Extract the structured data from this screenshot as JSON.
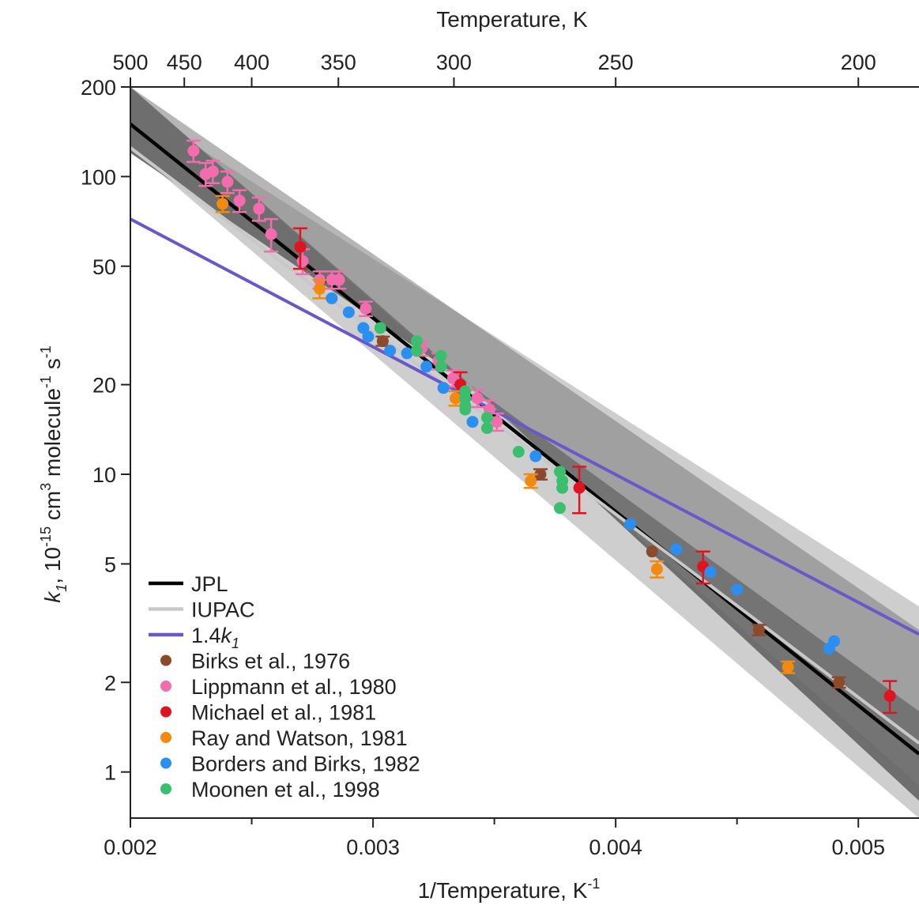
{
  "chart_data": {
    "type": "scatter",
    "title": "",
    "top_axis": {
      "label": "Temperature, K",
      "tick_values_K": [
        500,
        450,
        400,
        350,
        300,
        250,
        200
      ],
      "tick_labels": [
        "500",
        "450",
        "400",
        "350",
        "300",
        "250",
        "200"
      ]
    },
    "x_axis": {
      "label": "1/Temperature, K",
      "label_sup": "-1",
      "range": [
        0.002,
        0.00525
      ],
      "major_ticks": [
        0.002,
        0.003,
        0.004,
        0.005
      ],
      "tick_labels": [
        "0.002",
        "0.003",
        "0.004",
        "0.005"
      ],
      "minor_ticks": [
        0.0025,
        0.0035,
        0.0045
      ]
    },
    "y_axis": {
      "label_parts": [
        "k",
        "1",
        ", 10",
        "-15",
        " cm",
        "3",
        " molecule",
        "-1",
        " s",
        "-1"
      ],
      "scale": "log",
      "range": [
        0.7,
        200
      ],
      "tick_values": [
        1,
        2,
        5,
        10,
        20,
        50,
        100,
        200
      ],
      "tick_labels": [
        "1",
        "2",
        "5",
        "10",
        "20",
        "50",
        "100",
        "200"
      ]
    },
    "grid": false,
    "legend_position": "bottom-left",
    "lines": [
      {
        "name": "JPL",
        "color": "#000000",
        "x": [
          0.002,
          0.00525
        ],
        "y": [
          150,
          1.15
        ]
      },
      {
        "name": "IUPAC",
        "color": "#c8c8c8",
        "x": [
          0.002,
          0.00525
        ],
        "y": [
          125,
          1.25
        ]
      },
      {
        "name": "1.4k",
        "name_sub": "1",
        "color": "#6a57c9",
        "x": [
          0.002,
          0.00525
        ],
        "y": [
          72,
          2.9
        ]
      }
    ],
    "bands": [
      {
        "color": "#cecece",
        "upper": [
          [
            0.002,
            175
          ],
          [
            0.00525,
            3.6
          ]
        ],
        "lower": [
          [
            0.002,
            125
          ],
          [
            0.00525,
            0.7
          ]
        ]
      },
      {
        "color": "#6e6e6e",
        "upper": [
          [
            0.002,
            200
          ],
          [
            0.0034,
            20
          ],
          [
            0.00525,
            1.6
          ]
        ],
        "lower": [
          [
            0.002,
            120
          ],
          [
            0.0034,
            20
          ],
          [
            0.00525,
            0.8
          ]
        ]
      },
      {
        "color": "#7a7a7a",
        "upper": [
          [
            0.002,
            200
          ],
          [
            0.00525,
            3.0
          ]
        ],
        "lower": [
          [
            0.002,
            200
          ],
          [
            0.00525,
            0.9
          ]
        ]
      }
    ],
    "series": [
      {
        "name": "Birks et al., 1976",
        "color": "#8b4a2b",
        "points": [
          [
            0.00304,
            28.0,
            1.0
          ],
          [
            0.00369,
            10.0,
            0.4
          ],
          [
            0.00415,
            5.5,
            0
          ],
          [
            0.00459,
            3.0,
            0.12
          ],
          [
            0.00492,
            2.0,
            0.08
          ]
        ]
      },
      {
        "name": "Lippmann et al., 1980",
        "color": "#f26cae",
        "points": [
          [
            0.00226,
            122,
            10
          ],
          [
            0.00231,
            102,
            9
          ],
          [
            0.00234,
            104,
            9
          ],
          [
            0.0024,
            96,
            8
          ],
          [
            0.00245,
            83,
            7
          ],
          [
            0.00253,
            78,
            7
          ],
          [
            0.00258,
            64,
            8
          ],
          [
            0.00271,
            52,
            5
          ],
          [
            0.00278,
            45,
            3
          ],
          [
            0.00283,
            45,
            3
          ],
          [
            0.00286,
            45,
            3
          ],
          [
            0.00297,
            36,
            2
          ],
          [
            0.0032,
            26.5,
            1.5
          ],
          [
            0.00327,
            24,
            1.5
          ],
          [
            0.00333,
            21,
            1.3
          ],
          [
            0.00343,
            18,
            1.2
          ],
          [
            0.00348,
            16.5,
            1.2
          ],
          [
            0.00351,
            15,
            1.0
          ]
        ]
      },
      {
        "name": "Michael et al., 1981",
        "color": "#e0141e",
        "points": [
          [
            0.0027,
            58,
            9
          ],
          [
            0.00336,
            20,
            2
          ],
          [
            0.00385,
            9.0,
            1.6
          ],
          [
            0.00436,
            4.9,
            0.6
          ],
          [
            0.00513,
            1.8,
            0.22
          ]
        ]
      },
      {
        "name": "Ray and Watson, 1981",
        "color": "#f28a0f",
        "points": [
          [
            0.00238,
            81,
            5
          ],
          [
            0.00278,
            42,
            3
          ],
          [
            0.00334,
            18,
            1
          ],
          [
            0.00365,
            9.5,
            0.5
          ],
          [
            0.00417,
            4.8,
            0.3
          ],
          [
            0.00471,
            2.25,
            0.1
          ]
        ]
      },
      {
        "name": "Borders and Birks, 1982",
        "color": "#2a8ff0",
        "points": [
          [
            0.00283,
            39,
            0
          ],
          [
            0.0029,
            35,
            0
          ],
          [
            0.00296,
            31,
            0
          ],
          [
            0.00298,
            29,
            0
          ],
          [
            0.00307,
            26,
            0
          ],
          [
            0.00314,
            25.5,
            0
          ],
          [
            0.00322,
            23,
            0
          ],
          [
            0.00329,
            19.5,
            0
          ],
          [
            0.00341,
            15,
            0
          ],
          [
            0.00367,
            11.5,
            0
          ],
          [
            0.00406,
            6.8,
            0
          ],
          [
            0.00425,
            5.6,
            0
          ],
          [
            0.00439,
            4.7,
            0
          ],
          [
            0.0045,
            4.1,
            0
          ],
          [
            0.00488,
            2.6,
            0
          ],
          [
            0.0049,
            2.75,
            0
          ]
        ]
      },
      {
        "name": "Moonen et al., 1998",
        "color": "#3bbf6f",
        "points": [
          [
            0.00303,
            31,
            0
          ],
          [
            0.00318,
            28,
            0
          ],
          [
            0.00318,
            26,
            0
          ],
          [
            0.00328,
            25,
            0
          ],
          [
            0.00328,
            23,
            0
          ],
          [
            0.00338,
            19,
            0
          ],
          [
            0.00338,
            18,
            0
          ],
          [
            0.00338,
            17,
            0
          ],
          [
            0.00338,
            16.5,
            0
          ],
          [
            0.00347,
            15.5,
            0
          ],
          [
            0.00347,
            14.3,
            0
          ],
          [
            0.0036,
            11.9,
            0
          ],
          [
            0.00377,
            10.2,
            0
          ],
          [
            0.00378,
            9.5,
            0
          ],
          [
            0.00378,
            9.0,
            0
          ],
          [
            0.00377,
            7.7,
            0
          ]
        ]
      }
    ]
  },
  "legend": {
    "items": [
      {
        "label": "JPL",
        "kind": "line",
        "color": "#000000"
      },
      {
        "label": "IUPAC",
        "kind": "line",
        "color": "#c8c8c8"
      },
      {
        "label": "1.4k",
        "sub": "1",
        "kind": "line",
        "color": "#6a57c9"
      },
      {
        "label": "Birks et al., 1976",
        "kind": "dot",
        "color": "#8b4a2b"
      },
      {
        "label": "Lippmann et al., 1980",
        "kind": "dot",
        "color": "#f26cae"
      },
      {
        "label": "Michael et al., 1981",
        "kind": "dot",
        "color": "#e0141e"
      },
      {
        "label": "Ray and Watson, 1981",
        "kind": "dot",
        "color": "#f28a0f"
      },
      {
        "label": "Borders and Birks, 1982",
        "kind": "dot",
        "color": "#2a8ff0"
      },
      {
        "label": "Moonen et al., 1998",
        "kind": "dot",
        "color": "#3bbf6f"
      }
    ]
  }
}
